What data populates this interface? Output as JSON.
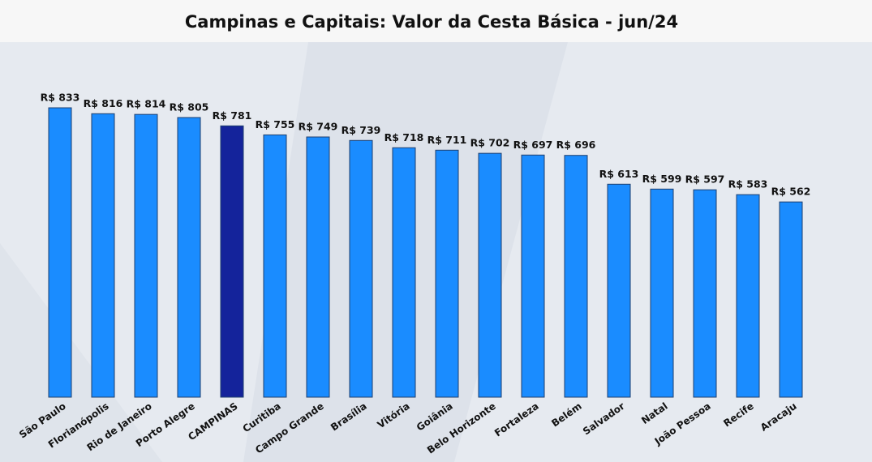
{
  "chart_data": {
    "type": "bar",
    "title": "Campinas e Capitais: Valor da Cesta Básica - jun/24",
    "categories": [
      "São Paulo",
      "Florianópolis",
      "Rio de Janeiro",
      "Porto Alegre",
      "CAMPINAS",
      "Curitiba",
      "Campo Grande",
      "Brasília",
      "Vitória",
      "Goiânia",
      "Belo Horizonte",
      "Fortaleza",
      "Belém",
      "Salvador",
      "Natal",
      "João Pessoa",
      "Recife",
      "Aracaju"
    ],
    "values": [
      833,
      816,
      814,
      805,
      781,
      755,
      749,
      739,
      718,
      711,
      702,
      697,
      696,
      613,
      599,
      597,
      583,
      562
    ],
    "value_labels": [
      "R$ 833",
      "R$ 816",
      "R$ 814",
      "R$ 805",
      "R$ 781",
      "R$ 755",
      "R$ 749",
      "R$ 739",
      "R$ 718",
      "R$ 711",
      "R$ 702",
      "R$ 697",
      "R$ 696",
      "R$ 613",
      "R$ 599",
      "R$ 597",
      "R$ 583",
      "R$ 562"
    ],
    "colors": [
      "#1a8cff",
      "#1a8cff",
      "#1a8cff",
      "#1a8cff",
      "#14239b",
      "#1a8cff",
      "#1a8cff",
      "#1a8cff",
      "#1a8cff",
      "#1a8cff",
      "#1a8cff",
      "#1a8cff",
      "#1a8cff",
      "#1a8cff",
      "#1a8cff",
      "#1a8cff",
      "#1a8cff",
      "#1a8cff"
    ]
  }
}
